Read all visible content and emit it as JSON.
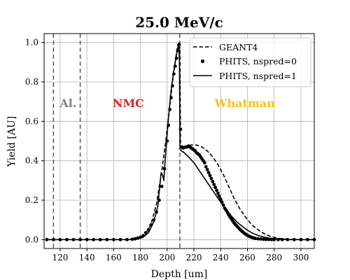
{
  "chart_data": {
    "type": "line",
    "title": "25.0 MeV/c",
    "xlabel": "Depth [um]",
    "ylabel": "Yield [AU]",
    "xlim": [
      108,
      310
    ],
    "ylim": [
      -0.045,
      1.045
    ],
    "xticks": [
      120,
      140,
      160,
      180,
      200,
      220,
      240,
      260,
      280,
      300
    ],
    "yticks": [
      0.0,
      0.2,
      0.4,
      0.6,
      0.8,
      1.0
    ],
    "xtick_labels": [
      "120",
      "140",
      "160",
      "180",
      "200",
      "220",
      "240",
      "260",
      "280",
      "300"
    ],
    "ytick_labels": [
      "0.0",
      "0.2",
      "0.4",
      "0.6",
      "0.8",
      "1.0"
    ],
    "grid": true,
    "legend_position": "top-right",
    "boundaries": [
      115,
      135,
      209.5
    ],
    "regions": [
      {
        "label": "Al.",
        "x": 126,
        "color": "#808080"
      },
      {
        "label": "NMC",
        "x": 171,
        "color": "#d62728"
      },
      {
        "label": "Whatman",
        "x": 258,
        "color": "#f5c518"
      }
    ],
    "series": [
      {
        "name": "GEANT4",
        "style": "dashed",
        "x": [
          110,
          170,
          176,
          180,
          184,
          188,
          192,
          196,
          199,
          202,
          204,
          206,
          207,
          208,
          209,
          209.5,
          210,
          211,
          214,
          218,
          222,
          226,
          230,
          234,
          238,
          242,
          246,
          250,
          254,
          258,
          262,
          266,
          270,
          274,
          278,
          282,
          286,
          290,
          300,
          310
        ],
        "y": [
          0.0,
          0.0,
          0.003,
          0.01,
          0.03,
          0.08,
          0.18,
          0.35,
          0.5,
          0.68,
          0.8,
          0.9,
          0.95,
          0.99,
          1.0,
          0.97,
          0.48,
          0.46,
          0.47,
          0.48,
          0.48,
          0.47,
          0.45,
          0.42,
          0.38,
          0.33,
          0.27,
          0.21,
          0.16,
          0.12,
          0.085,
          0.06,
          0.04,
          0.025,
          0.015,
          0.008,
          0.004,
          0.002,
          0.0,
          0.0
        ]
      },
      {
        "name": "PHITS, nspred=0",
        "style": "dots",
        "x": [
          110,
          115,
          120,
          125,
          130,
          135,
          140,
          145,
          150,
          155,
          160,
          165,
          170,
          174,
          176,
          178,
          180,
          182,
          184,
          186,
          188,
          190,
          192,
          194,
          196,
          198,
          200,
          201,
          202,
          203,
          204,
          205,
          206,
          207,
          208,
          209,
          210,
          211,
          212,
          213,
          214,
          215,
          216,
          217,
          218,
          219,
          220,
          221,
          222,
          223,
          224,
          225,
          226,
          227,
          228,
          229,
          230,
          231,
          232,
          233,
          234,
          235,
          236,
          237,
          238,
          239,
          240,
          241,
          242,
          243,
          244,
          245,
          246,
          247,
          248,
          249,
          250,
          251,
          252,
          253,
          254,
          255,
          256,
          257,
          258,
          259,
          260,
          261,
          262,
          263,
          264,
          265,
          266,
          268,
          270,
          272,
          274,
          276,
          278,
          280,
          283,
          286,
          290,
          295,
          300,
          305,
          310
        ],
        "y": [
          0.0,
          0.0,
          0.0,
          0.0,
          0.0,
          0.0,
          0.0,
          0.0,
          0.0,
          0.0,
          0.0,
          0.0,
          0.0,
          0.002,
          0.004,
          0.008,
          0.012,
          0.02,
          0.035,
          0.05,
          0.075,
          0.1,
          0.14,
          0.2,
          0.27,
          0.36,
          0.5,
          0.58,
          0.66,
          0.72,
          0.78,
          0.84,
          0.88,
          0.92,
          0.96,
          0.99,
          0.56,
          0.47,
          0.465,
          0.468,
          0.47,
          0.47,
          0.475,
          0.47,
          0.465,
          0.46,
          0.455,
          0.45,
          0.44,
          0.435,
          0.43,
          0.42,
          0.41,
          0.4,
          0.39,
          0.37,
          0.355,
          0.34,
          0.325,
          0.31,
          0.295,
          0.28,
          0.265,
          0.25,
          0.235,
          0.22,
          0.205,
          0.19,
          0.175,
          0.16,
          0.15,
          0.138,
          0.125,
          0.115,
          0.105,
          0.095,
          0.085,
          0.077,
          0.07,
          0.062,
          0.055,
          0.048,
          0.042,
          0.036,
          0.031,
          0.026,
          0.022,
          0.018,
          0.015,
          0.012,
          0.01,
          0.008,
          0.006,
          0.004,
          0.003,
          0.002,
          0.001,
          0.001,
          0.0,
          0.0,
          0.0,
          0.0,
          0.0,
          0.0,
          0.0,
          0.0,
          0.0
        ]
      },
      {
        "name": "PHITS, nspred=1",
        "style": "solid",
        "x": [
          110,
          172,
          178,
          182,
          186,
          190,
          193,
          195.5,
          196.5,
          197.5,
          199,
          201,
          203,
          205,
          206.5,
          207.5,
          208.5,
          209.2,
          209.6,
          210.5,
          212,
          216,
          220,
          224,
          228,
          232,
          236,
          240,
          244,
          248,
          252,
          256,
          260,
          264,
          268,
          272,
          276,
          280,
          285,
          290,
          300,
          310
        ],
        "y": [
          0.0,
          0.0,
          0.004,
          0.012,
          0.035,
          0.09,
          0.17,
          0.34,
          0.33,
          0.3,
          0.45,
          0.62,
          0.76,
          0.86,
          0.92,
          0.96,
          0.99,
          0.9,
          0.46,
          0.45,
          0.445,
          0.42,
          0.39,
          0.35,
          0.31,
          0.27,
          0.23,
          0.19,
          0.155,
          0.12,
          0.09,
          0.068,
          0.048,
          0.032,
          0.021,
          0.013,
          0.008,
          0.004,
          0.002,
          0.0,
          0.0,
          0.0
        ]
      }
    ]
  }
}
